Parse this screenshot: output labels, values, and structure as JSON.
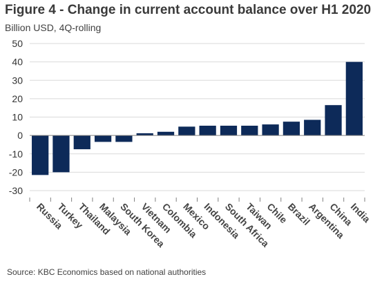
{
  "header": {
    "title": "Figure 4 - Change in current account balance over H1 2020",
    "subtitle": "Billion USD, 4Q-rolling"
  },
  "footer": {
    "source": "Source: KBC Economics based on national authorities"
  },
  "colors": {
    "bar": "#0d2a59",
    "grid": "#d9d9d9",
    "axis": "#7f7f7f"
  },
  "chart_data": {
    "type": "bar",
    "title": "Figure 4 - Change in current account balance over H1 2020",
    "subtitle": "Billion USD, 4Q-rolling",
    "xlabel": "",
    "ylabel": "",
    "ylim": [
      -30,
      50
    ],
    "yticks": [
      -30,
      -20,
      -10,
      0,
      10,
      20,
      30,
      40,
      50
    ],
    "grid": true,
    "legend": "none",
    "categories": [
      "Russia",
      "Turkey",
      "Thailand",
      "Malaysia",
      "South Korea",
      "Vietnam",
      "Colombia",
      "Mexico",
      "Indonesia",
      "South Africa",
      "Taiwan",
      "Chile",
      "Brazil",
      "Argentina",
      "China",
      "India"
    ],
    "values": [
      -21.5,
      -20,
      -7.5,
      -3.5,
      -3.5,
      1.2,
      2,
      4.8,
      5.3,
      5.3,
      5.3,
      6,
      7.5,
      8.5,
      16.5,
      40
    ]
  }
}
